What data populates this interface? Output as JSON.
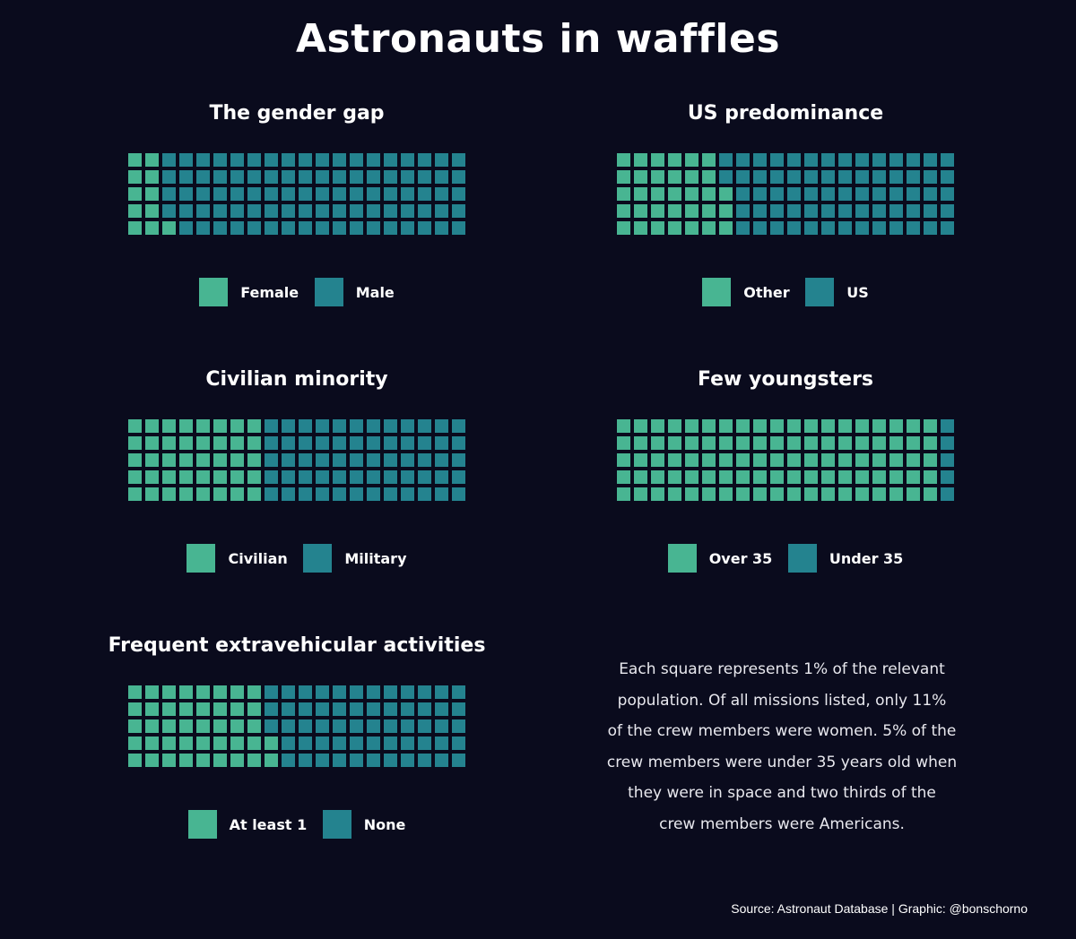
{
  "title": "Astronauts in waffles",
  "colors": {
    "background": "#0a0b1d",
    "first": "#48b592",
    "second": "#24838f"
  },
  "chart_data": [
    {
      "type": "waffle",
      "title": "The gender gap",
      "rows": 5,
      "cols": 20,
      "categories": [
        "Female",
        "Male"
      ],
      "values": [
        11,
        89
      ]
    },
    {
      "type": "waffle",
      "title": "US predominance",
      "rows": 5,
      "cols": 20,
      "categories": [
        "Other",
        "US"
      ],
      "values": [
        33,
        67
      ]
    },
    {
      "type": "waffle",
      "title": "Civilian minority",
      "rows": 5,
      "cols": 20,
      "categories": [
        "Civilian",
        "Military"
      ],
      "values": [
        40,
        60
      ]
    },
    {
      "type": "waffle",
      "title": "Few youngsters",
      "rows": 5,
      "cols": 20,
      "categories": [
        "Over 35",
        "Under 35"
      ],
      "values": [
        95,
        5
      ]
    },
    {
      "type": "waffle",
      "title": "Frequent extravehicular activities",
      "rows": 5,
      "cols": 20,
      "categories": [
        "At least 1",
        "None"
      ],
      "values": [
        42,
        58
      ]
    }
  ],
  "note_lines": [
    "Each square represents 1% of the relevant",
    "population. Of all missions listed, only 11%",
    "of the crew members were women. 5% of the",
    "crew members were under 35 years old when",
    "they were in space and two thirds of the",
    "crew members were Americans."
  ],
  "source": "Source: Astronaut Database | Graphic: @bonschorno"
}
